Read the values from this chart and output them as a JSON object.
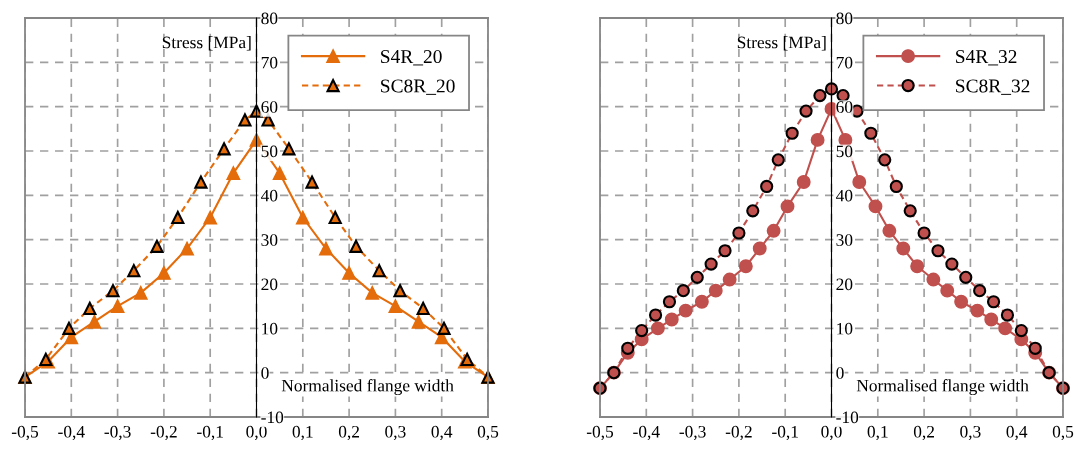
{
  "chart_data": [
    {
      "type": "line",
      "xlabel": "Normalised flange width",
      "ylabel": "Stress [MPa]",
      "xlim": [
        -0.5,
        0.5
      ],
      "ylim": [
        -10,
        80
      ],
      "xticks": [
        {
          "value": -0.5,
          "label": "-0,5"
        },
        {
          "value": -0.4,
          "label": "-0,4"
        },
        {
          "value": -0.3,
          "label": "-0,3"
        },
        {
          "value": -0.2,
          "label": "-0,2"
        },
        {
          "value": -0.1,
          "label": "-0,1"
        },
        {
          "value": 0,
          "label": "0,0"
        },
        {
          "value": 0.1,
          "label": "0,1"
        },
        {
          "value": 0.2,
          "label": "0,2"
        },
        {
          "value": 0.3,
          "label": "0,3"
        },
        {
          "value": 0.4,
          "label": "0,4"
        },
        {
          "value": 0.5,
          "label": "0,5"
        }
      ],
      "yticks": [
        -10,
        0,
        10,
        20,
        30,
        40,
        50,
        60,
        70,
        80
      ],
      "grid": true,
      "legend": "top right",
      "marker": "triangle",
      "series": [
        {
          "name": "S4R_20",
          "color": "#e46c0a",
          "line_style": "solid",
          "x": [
            -0.5,
            -0.45,
            -0.4,
            -0.35,
            -0.3,
            -0.25,
            -0.2,
            -0.15,
            -0.1,
            -0.05,
            0,
            0.05,
            0.1,
            0.15,
            0.2,
            0.25,
            0.3,
            0.35,
            0.4,
            0.45,
            0.5
          ],
          "values": [
            -1,
            2.5,
            8,
            11.5,
            15,
            18,
            22.5,
            28,
            35,
            45,
            52.5,
            45,
            35,
            28,
            22.5,
            18,
            15,
            11.5,
            8,
            2.5,
            -1
          ]
        },
        {
          "name": "SC8R_20",
          "color": "#e46c0a",
          "line_style": "dashed",
          "x": [
            -0.5,
            -0.455,
            -0.405,
            -0.36,
            -0.31,
            -0.265,
            -0.215,
            -0.17,
            -0.12,
            -0.07,
            -0.025,
            0,
            0.025,
            0.07,
            0.12,
            0.17,
            0.215,
            0.265,
            0.31,
            0.36,
            0.405,
            0.455,
            0.5
          ],
          "values": [
            -1,
            3,
            10,
            14.5,
            18.5,
            23,
            28.5,
            35,
            43,
            50.5,
            57,
            59,
            57,
            50.5,
            43,
            35,
            28.5,
            23,
            18.5,
            14.5,
            10,
            3,
            -1
          ]
        }
      ]
    },
    {
      "type": "line",
      "xlabel": "Normalised flange width",
      "ylabel": "Stress [MPa]",
      "xlim": [
        -0.5,
        0.5
      ],
      "ylim": [
        -10,
        80
      ],
      "xticks": [
        {
          "value": -0.5,
          "label": "-0,5"
        },
        {
          "value": -0.4,
          "label": "-0,4"
        },
        {
          "value": -0.3,
          "label": "-0,3"
        },
        {
          "value": -0.2,
          "label": "-0,2"
        },
        {
          "value": -0.1,
          "label": "-0,1"
        },
        {
          "value": 0,
          "label": "0,0"
        },
        {
          "value": 0.1,
          "label": "0,1"
        },
        {
          "value": 0.2,
          "label": "0,2"
        },
        {
          "value": 0.3,
          "label": "0,3"
        },
        {
          "value": 0.4,
          "label": "0,4"
        },
        {
          "value": 0.5,
          "label": "0,5"
        }
      ],
      "yticks": [
        -10,
        0,
        10,
        20,
        30,
        40,
        50,
        60,
        70,
        80
      ],
      "grid": true,
      "legend": "top right",
      "marker": "circle",
      "series": [
        {
          "name": "S4R_32",
          "color": "#c0504d",
          "line_style": "solid",
          "x": [
            -0.5,
            -0.47,
            -0.44,
            -0.41,
            -0.375,
            -0.345,
            -0.315,
            -0.28,
            -0.25,
            -0.22,
            -0.185,
            -0.155,
            -0.125,
            -0.095,
            -0.06,
            -0.03,
            0,
            0.03,
            0.06,
            0.095,
            0.125,
            0.155,
            0.185,
            0.22,
            0.25,
            0.28,
            0.315,
            0.345,
            0.375,
            0.41,
            0.44,
            0.47,
            0.5
          ],
          "values": [
            -3.5,
            0,
            4.5,
            7.5,
            10,
            12,
            14,
            16,
            18.5,
            21,
            24,
            28,
            32,
            37.5,
            43,
            52.5,
            59.5,
            52.5,
            43,
            37.5,
            32,
            28,
            24,
            21,
            18.5,
            16,
            14,
            12,
            10,
            7.5,
            4.5,
            0,
            -3.5
          ]
        },
        {
          "name": "SC8R_32",
          "color": "#c0504d",
          "line_style": "dashed",
          "x": [
            -0.5,
            -0.47,
            -0.44,
            -0.41,
            -0.38,
            -0.35,
            -0.32,
            -0.29,
            -0.26,
            -0.23,
            -0.2,
            -0.17,
            -0.14,
            -0.115,
            -0.085,
            -0.055,
            -0.025,
            0,
            0.025,
            0.055,
            0.085,
            0.115,
            0.14,
            0.17,
            0.2,
            0.23,
            0.26,
            0.29,
            0.32,
            0.35,
            0.38,
            0.41,
            0.44,
            0.47,
            0.5
          ],
          "values": [
            -3.5,
            0,
            5.5,
            9.5,
            13,
            16,
            18.5,
            21.5,
            24.5,
            27.5,
            31.5,
            36.5,
            42,
            48,
            54,
            59,
            62.5,
            64,
            62.5,
            59,
            54,
            48,
            42,
            36.5,
            31.5,
            27.5,
            24.5,
            21.5,
            18.5,
            16,
            13,
            9.5,
            5.5,
            0,
            -3.5
          ]
        }
      ]
    }
  ]
}
